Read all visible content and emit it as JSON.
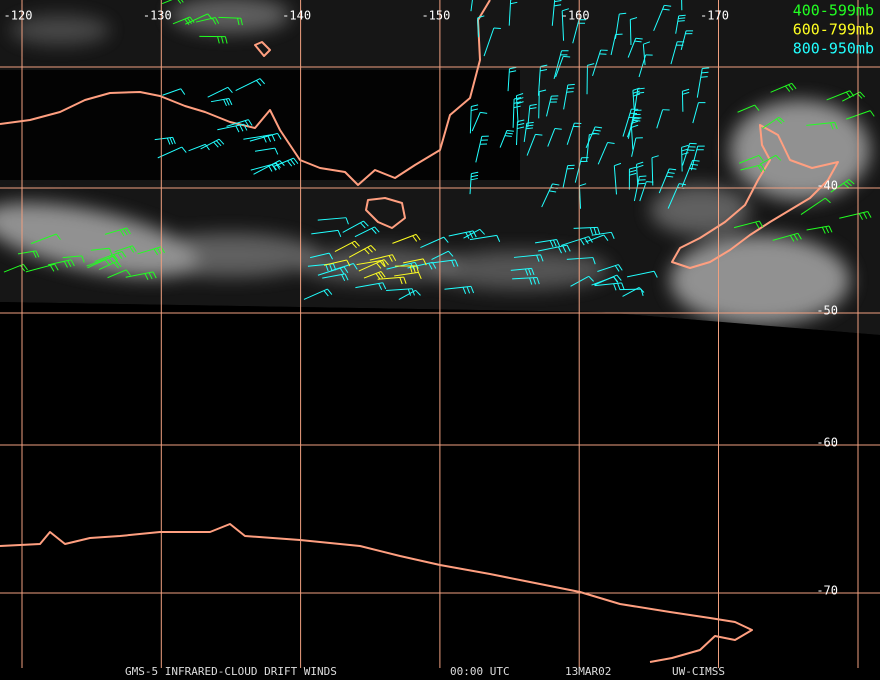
{
  "map": {
    "lon_labels": [
      -120,
      -130,
      -140,
      -150,
      -160,
      -170
    ],
    "lat_labels": [
      -40,
      -50,
      -60,
      -70
    ],
    "legend": [
      {
        "label": "400-599mb",
        "color": "#22ff22"
      },
      {
        "label": "600-799mb",
        "color": "#ffff22"
      },
      {
        "label": "800-950mb",
        "color": "#22ffff"
      }
    ],
    "footer": [
      "GMS-5 INFRARED-CLOUD DRIFT WINDS",
      "00:00 UTC",
      "13MAR02",
      "UW-CIMSS"
    ]
  }
}
